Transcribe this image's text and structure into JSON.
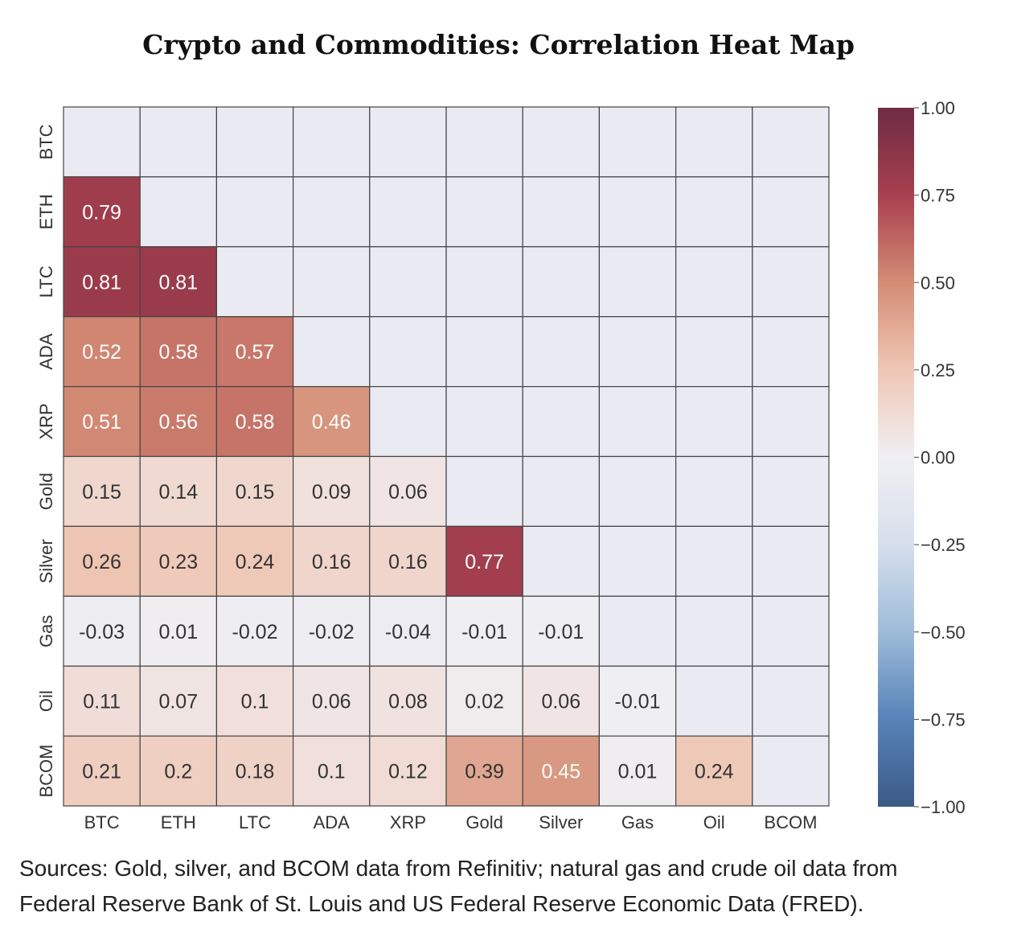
{
  "chart_data": {
    "type": "heatmap",
    "title": "Crypto and Commodities: Correlation Heat Map",
    "row_labels": [
      "BTC",
      "ETH",
      "LTC",
      "ADA",
      "XRP",
      "Gold",
      "Silver",
      "Gas",
      "Oil",
      "BCOM"
    ],
    "col_labels": [
      "BTC",
      "ETH",
      "LTC",
      "ADA",
      "XRP",
      "Gold",
      "Silver",
      "Gas",
      "Oil",
      "BCOM"
    ],
    "values": [
      [],
      [
        "0.79"
      ],
      [
        "0.81",
        "0.81"
      ],
      [
        "0.52",
        "0.58",
        "0.57"
      ],
      [
        "0.51",
        "0.56",
        "0.58",
        "0.46"
      ],
      [
        "0.15",
        "0.14",
        "0.15",
        "0.09",
        "0.06"
      ],
      [
        "0.26",
        "0.23",
        "0.24",
        "0.16",
        "0.16",
        "0.77"
      ],
      [
        "-0.03",
        "0.01",
        "-0.02",
        "-0.02",
        "-0.04",
        "-0.01",
        "-0.01"
      ],
      [
        "0.11",
        "0.07",
        "0.1",
        "0.06",
        "0.08",
        "0.02",
        "0.06",
        "-0.01"
      ],
      [
        "0.21",
        "0.2",
        "0.18",
        "0.1",
        "0.12",
        "0.39",
        "0.45",
        "0.01",
        "0.24"
      ]
    ],
    "mask": "upper triangle including diagonal",
    "colorbar": {
      "range": [
        -1,
        1
      ],
      "ticks": [
        "1.00",
        "0.75",
        "0.50",
        "0.25",
        "0.00",
        "−0.25",
        "−0.50",
        "−0.75",
        "−1.00"
      ],
      "tick_values": [
        1,
        0.75,
        0.5,
        0.25,
        0,
        -0.25,
        -0.5,
        -0.75,
        -1
      ]
    },
    "colors": {
      "masked": "#eaeaf2",
      "gridline": "#444444",
      "cmap": [
        "#3b5a86",
        "#5783b8",
        "#9dbcd9",
        "#d6dfec",
        "#f0eff3",
        "#efc7b5",
        "#d48c74",
        "#a8404f",
        "#6e2b43"
      ]
    }
  },
  "sources": {
    "line1": "Sources: Gold, silver, and BCOM data from Refinitiv; natural gas and crude oil data from",
    "line2": "Federal Reserve Bank of St. Louis and US Federal Reserve Economic Data (FRED)."
  }
}
